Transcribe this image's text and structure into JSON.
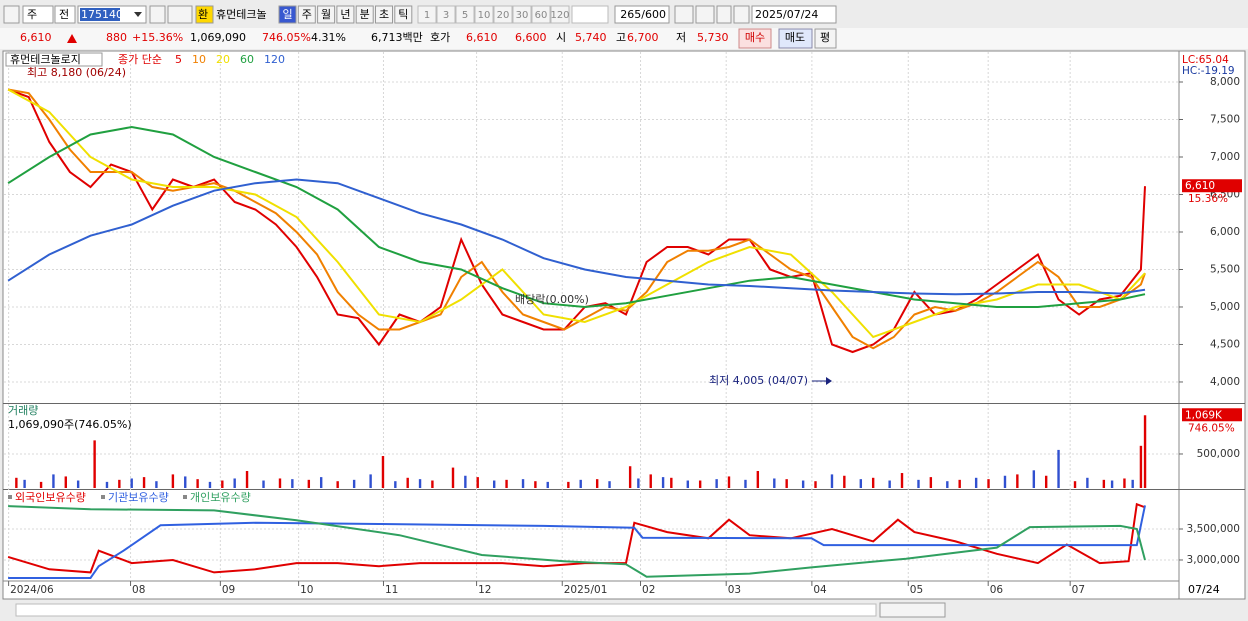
{
  "toolbar": {
    "period": "주",
    "scope": "전",
    "code": "175140",
    "exchange": "환",
    "name": "휴먼테크놀",
    "periods": [
      "일",
      "주",
      "월",
      "년",
      "분",
      "초",
      "틱"
    ],
    "intervals": [
      "1",
      "3",
      "5",
      "10",
      "20",
      "30",
      "60",
      "120"
    ],
    "count": "265/600",
    "date": "2025/07/24"
  },
  "quote": {
    "price": "6,610",
    "change": "880",
    "change_pct": "+15.36%",
    "volume": "1,069,090",
    "volume_pct": "746.05%",
    "turnover": "4.31%",
    "amount": "6,713백만",
    "ask_label": "호가",
    "ask": "6,610",
    "bid": "6,600",
    "open_label": "시",
    "open": "5,740",
    "high_label": "고",
    "high": "6,700",
    "low_label": "저",
    "low": "5,730",
    "buy": "매수",
    "sell": "매도",
    "avg": "평"
  },
  "right_panel": {
    "lc": "LC:65.04",
    "hc": "HC:-19.19"
  },
  "chart_data": [
    {
      "type": "line",
      "title": "휴먼테크놀로지",
      "legend_title": "종가 단순",
      "annotations": [
        "최고 8,180 (06/24)",
        "배당락(0.00%)",
        "최저 4,005 (04/07)"
      ],
      "last_change_label": "15.36%",
      "last_value_label": "6,610",
      "xlim": [
        -1,
        284
      ],
      "ylim": [
        3733,
        8400
      ],
      "yticks": [
        {
          "value": 4000,
          "label": "4,000"
        },
        {
          "value": 4500,
          "label": "4,500"
        },
        {
          "value": 5000,
          "label": "5,000"
        },
        {
          "value": 5500,
          "label": "5,500"
        },
        {
          "value": 6000,
          "label": "6,000"
        },
        {
          "value": 6500,
          "label": "6,500"
        },
        {
          "value": 7000,
          "label": "7,000"
        },
        {
          "value": 7500,
          "label": "7,500"
        },
        {
          "value": 8000,
          "label": "8,000"
        }
      ],
      "grid": true,
      "series": [
        {
          "name": "5",
          "color": "#e00000",
          "x": [
            0,
            5,
            10,
            15,
            20,
            25,
            30,
            35,
            40,
            45,
            50,
            55,
            60,
            65,
            70,
            75,
            80,
            85,
            90,
            95,
            100,
            105,
            110,
            115,
            120,
            125,
            130,
            135,
            140,
            145,
            150,
            155,
            160,
            165,
            170,
            175,
            180,
            185,
            190,
            195,
            200,
            205,
            210,
            215,
            220,
            225,
            230,
            235,
            240,
            245,
            250,
            255,
            260,
            265,
            270,
            275,
            276
          ],
          "values": [
            7900,
            7800,
            7200,
            6800,
            6600,
            6900,
            6800,
            6300,
            6700,
            6600,
            6700,
            6400,
            6300,
            6100,
            5800,
            5400,
            4900,
            4850,
            4500,
            4900,
            4800,
            5000,
            5900,
            5300,
            4900,
            4800,
            4700,
            4700,
            5000,
            5050,
            4900,
            5600,
            5800,
            5800,
            5700,
            5900,
            5900,
            5500,
            5400,
            5450,
            4500,
            4400,
            4500,
            4700,
            5200,
            4900,
            4950,
            5100,
            5300,
            5500,
            5700,
            5100,
            4900,
            5100,
            5150,
            5500,
            6610
          ]
        },
        {
          "name": "10",
          "color": "#f08000",
          "x": [
            0,
            5,
            10,
            15,
            20,
            25,
            30,
            35,
            40,
            45,
            50,
            55,
            60,
            65,
            70,
            75,
            80,
            85,
            90,
            95,
            100,
            105,
            110,
            115,
            120,
            125,
            130,
            135,
            140,
            145,
            150,
            155,
            160,
            165,
            170,
            175,
            180,
            185,
            190,
            195,
            200,
            205,
            210,
            215,
            220,
            225,
            230,
            235,
            240,
            245,
            250,
            255,
            260,
            265,
            270,
            275,
            276
          ],
          "values": [
            7900,
            7850,
            7500,
            7100,
            6800,
            6800,
            6800,
            6600,
            6550,
            6600,
            6650,
            6550,
            6400,
            6250,
            6000,
            5700,
            5200,
            4900,
            4700,
            4700,
            4800,
            4900,
            5400,
            5600,
            5200,
            4900,
            4800,
            4700,
            4850,
            5000,
            4950,
            5200,
            5600,
            5750,
            5750,
            5800,
            5900,
            5700,
            5500,
            5400,
            5000,
            4600,
            4450,
            4600,
            4900,
            5000,
            4950,
            5050,
            5200,
            5400,
            5600,
            5400,
            5000,
            5000,
            5100,
            5300,
            5450
          ]
        },
        {
          "name": "20",
          "color": "#f0e000",
          "x": [
            0,
            10,
            20,
            30,
            40,
            50,
            60,
            70,
            80,
            90,
            100,
            110,
            120,
            130,
            140,
            150,
            160,
            170,
            180,
            190,
            200,
            210,
            220,
            230,
            240,
            250,
            260,
            270,
            276
          ],
          "values": [
            7900,
            7600,
            7000,
            6700,
            6600,
            6600,
            6500,
            6200,
            5600,
            4900,
            4800,
            5100,
            5500,
            4900,
            4800,
            5000,
            5300,
            5600,
            5800,
            5700,
            5200,
            4600,
            4800,
            5000,
            5100,
            5300,
            5300,
            5100,
            5450
          ]
        },
        {
          "name": "60",
          "color": "#20a040",
          "x": [
            0,
            10,
            20,
            30,
            40,
            50,
            60,
            70,
            80,
            90,
            100,
            110,
            120,
            130,
            140,
            150,
            160,
            170,
            180,
            190,
            200,
            210,
            220,
            230,
            240,
            250,
            260,
            270,
            276
          ],
          "values": [
            6650,
            7000,
            7300,
            7400,
            7300,
            7000,
            6800,
            6600,
            6300,
            5800,
            5600,
            5500,
            5250,
            5050,
            5000,
            5050,
            5150,
            5250,
            5350,
            5400,
            5300,
            5200,
            5100,
            5050,
            5000,
            5000,
            5050,
            5100,
            5170
          ]
        },
        {
          "name": "120",
          "color": "#3060d0",
          "x": [
            0,
            10,
            20,
            30,
            40,
            50,
            60,
            70,
            80,
            90,
            100,
            110,
            120,
            130,
            140,
            150,
            160,
            170,
            180,
            190,
            200,
            210,
            220,
            230,
            240,
            250,
            260,
            270,
            276
          ],
          "values": [
            5350,
            5700,
            5950,
            6100,
            6350,
            6550,
            6650,
            6700,
            6650,
            6450,
            6250,
            6100,
            5900,
            5650,
            5500,
            5400,
            5350,
            5300,
            5280,
            5250,
            5220,
            5200,
            5180,
            5170,
            5180,
            5200,
            5200,
            5180,
            5230
          ]
        }
      ]
    },
    {
      "type": "bar",
      "title": "거래량",
      "subtitle": "1,069,090주(746.05%)",
      "last_value_label": "1,069K",
      "last_change_label": "746.05%",
      "xlim": [
        -1,
        284
      ],
      "ylim": [
        0,
        1220000
      ],
      "yticks": [
        {
          "value": 500000,
          "label": "500,000"
        }
      ],
      "grid": true,
      "series": [
        {
          "color": "#e00000",
          "x": [
            2,
            8,
            14,
            21,
            27,
            33,
            40,
            46,
            52,
            58,
            66,
            73,
            80,
            91,
            97,
            103,
            108,
            114,
            121,
            128,
            136,
            143,
            151,
            156,
            161,
            168,
            175,
            182,
            189,
            196,
            203,
            210,
            217,
            224,
            231,
            238,
            245,
            252,
            259,
            266,
            271,
            275,
            276
          ],
          "values": [
            150000,
            90000,
            170000,
            700000,
            120000,
            160000,
            200000,
            130000,
            110000,
            250000,
            140000,
            120000,
            100000,
            470000,
            150000,
            110000,
            300000,
            160000,
            120000,
            100000,
            90000,
            130000,
            320000,
            200000,
            150000,
            110000,
            170000,
            250000,
            130000,
            100000,
            180000,
            150000,
            220000,
            160000,
            120000,
            130000,
            200000,
            180000,
            100000,
            120000,
            140000,
            620000,
            1069090
          ]
        },
        {
          "color": "#3050d0",
          "x": [
            4,
            11,
            17,
            24,
            30,
            36,
            43,
            49,
            55,
            62,
            69,
            76,
            84,
            88,
            94,
            100,
            111,
            118,
            125,
            131,
            139,
            146,
            153,
            159,
            165,
            172,
            179,
            186,
            193,
            200,
            207,
            214,
            221,
            228,
            235,
            242,
            249,
            255,
            262,
            268,
            273
          ],
          "values": [
            120000,
            200000,
            110000,
            90000,
            140000,
            100000,
            170000,
            90000,
            140000,
            110000,
            130000,
            160000,
            120000,
            200000,
            100000,
            130000,
            180000,
            110000,
            130000,
            90000,
            120000,
            100000,
            140000,
            160000,
            110000,
            130000,
            120000,
            140000,
            110000,
            200000,
            130000,
            110000,
            120000,
            100000,
            150000,
            180000,
            260000,
            560000,
            150000,
            110000,
            120000
          ]
        }
      ]
    },
    {
      "type": "line",
      "xlim": [
        -1,
        284
      ],
      "ylim": [
        2677000,
        4113000
      ],
      "yticks": [
        {
          "value": 3000000,
          "label": "3,000,000"
        },
        {
          "value": 3500000,
          "label": "3,500,000"
        }
      ],
      "grid": true,
      "xticks": [
        {
          "value": 0,
          "label": "2024/06"
        },
        {
          "value": 29.6,
          "label": "08"
        },
        {
          "value": 51.4,
          "label": "09"
        },
        {
          "value": 70.4,
          "label": "10"
        },
        {
          "value": 91,
          "label": "11"
        },
        {
          "value": 113.6,
          "label": "12"
        },
        {
          "value": 134.4,
          "label": "2025/01"
        },
        {
          "value": 153.4,
          "label": "02"
        },
        {
          "value": 174.2,
          "label": "03"
        },
        {
          "value": 195,
          "label": "04"
        },
        {
          "value": 218.4,
          "label": "05"
        },
        {
          "value": 237.8,
          "label": "06"
        },
        {
          "value": 257.7,
          "label": "07"
        }
      ],
      "end_label": "07/24",
      "series": [
        {
          "name": "외국인보유수량",
          "color": "#e00000",
          "x": [
            0,
            10,
            20,
            22,
            30,
            40,
            50,
            60,
            70,
            80,
            90,
            100,
            110,
            120,
            130,
            140,
            150,
            152,
            160,
            170,
            175,
            180,
            190,
            200,
            210,
            216,
            220,
            230,
            240,
            250,
            257,
            265,
            272,
            274,
            276
          ],
          "values": [
            3050000,
            2850000,
            2800000,
            3150000,
            2950000,
            3000000,
            2800000,
            2850000,
            2950000,
            2950000,
            2900000,
            2950000,
            2950000,
            2950000,
            2900000,
            2950000,
            2950000,
            3600000,
            3450000,
            3350000,
            3650000,
            3400000,
            3350000,
            3500000,
            3300000,
            3650000,
            3450000,
            3300000,
            3100000,
            2950000,
            3250000,
            2950000,
            2980000,
            3900000,
            3850000
          ]
        },
        {
          "name": "기관보유수량",
          "color": "#3060e0",
          "x": [
            0,
            20,
            22,
            28,
            37,
            60,
            90,
            130,
            152,
            154,
            195,
            198,
            274,
            276
          ],
          "values": [
            2710000,
            2710000,
            2900000,
            3150000,
            3560000,
            3600000,
            3580000,
            3550000,
            3520000,
            3360000,
            3350000,
            3240000,
            3240000,
            3880000
          ]
        },
        {
          "name": "개인보유수량",
          "color": "#30a060",
          "x": [
            0,
            20,
            50,
            70,
            95,
            115,
            135,
            150,
            155,
            180,
            195,
            218,
            240,
            248,
            270,
            274,
            276
          ],
          "values": [
            3870000,
            3820000,
            3800000,
            3640000,
            3400000,
            3080000,
            2980000,
            2930000,
            2730000,
            2780000,
            2880000,
            3020000,
            3200000,
            3530000,
            3550000,
            3500000,
            3000000
          ]
        }
      ]
    }
  ]
}
